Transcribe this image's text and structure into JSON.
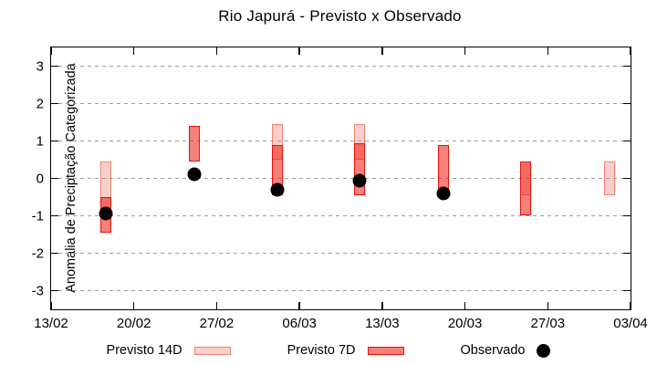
{
  "title": "Rio Japurá - Previsto x Observado",
  "chart_data": {
    "type": "range-bar+scatter",
    "title": "Rio Japurá - Previsto x Observado",
    "xlabel": "",
    "ylabel": "Anomalia de Preciptação Categorizada",
    "ylim": [
      -3.5,
      3.5
    ],
    "yticks": [
      -3,
      -2,
      -1,
      0,
      1,
      2,
      3
    ],
    "grid": "horizontal-dashed-gray",
    "legend_position": "bottom",
    "x_axis": {
      "tick_labels": [
        "13/02",
        "20/02",
        "27/02",
        "06/03",
        "13/03",
        "20/03",
        "27/03",
        "03/04"
      ],
      "tick_days": [
        0,
        7,
        14,
        21,
        28,
        35,
        42,
        49
      ],
      "total_days": 49
    },
    "colors": {
      "previsto14d_fill": "rgba(235,95,75,0.30)",
      "previsto14d_border": "#ee8273",
      "previsto7d_fill": "rgba(235,25,15,0.55)",
      "previsto7d_border": "#e3120b",
      "observado": "#000000",
      "gridline": "#9b9b9b"
    },
    "series": [
      {
        "name": "Previsto 14D",
        "kind": "range-bar",
        "fill": "rgba(235,95,75,0.30)",
        "border": "#ee8273",
        "bars": [
          {
            "day": 4.6,
            "lo": -0.9,
            "hi": 0.45
          },
          {
            "day": 19.1,
            "lo": 0.5,
            "hi": 1.45
          },
          {
            "day": 26.1,
            "lo": 0.5,
            "hi": 1.45
          },
          {
            "day": 40.1,
            "lo": -0.45,
            "hi": 0.45
          },
          {
            "day": 47.2,
            "lo": -0.45,
            "hi": 0.45
          }
        ]
      },
      {
        "name": "Previsto 7D",
        "kind": "range-bar",
        "fill": "rgba(235,25,15,0.55)",
        "border": "#e3120b",
        "bars": [
          {
            "day": 4.6,
            "lo": -1.45,
            "hi": -0.5
          },
          {
            "day": 12.1,
            "lo": 0.45,
            "hi": 1.4
          },
          {
            "day": 19.1,
            "lo": -0.45,
            "hi": 0.9
          },
          {
            "day": 26.1,
            "lo": -0.45,
            "hi": 0.95
          },
          {
            "day": 33.2,
            "lo": -0.45,
            "hi": 0.9
          },
          {
            "day": 40.1,
            "lo": -1.0,
            "hi": 0.45
          }
        ]
      },
      {
        "name": "Observado",
        "kind": "scatter",
        "color": "#000000",
        "points": [
          {
            "day": 4.6,
            "value": -0.95
          },
          {
            "day": 12.1,
            "value": 0.1
          },
          {
            "day": 19.1,
            "value": -0.3
          },
          {
            "day": 26.1,
            "value": -0.05
          },
          {
            "day": 33.2,
            "value": -0.4
          }
        ]
      }
    ]
  },
  "legend": {
    "items": [
      {
        "label": "Previsto 14D",
        "swatch": "box-light"
      },
      {
        "label": "Previsto 7D",
        "swatch": "box-dark"
      },
      {
        "label": "Observado",
        "swatch": "dot"
      }
    ]
  }
}
